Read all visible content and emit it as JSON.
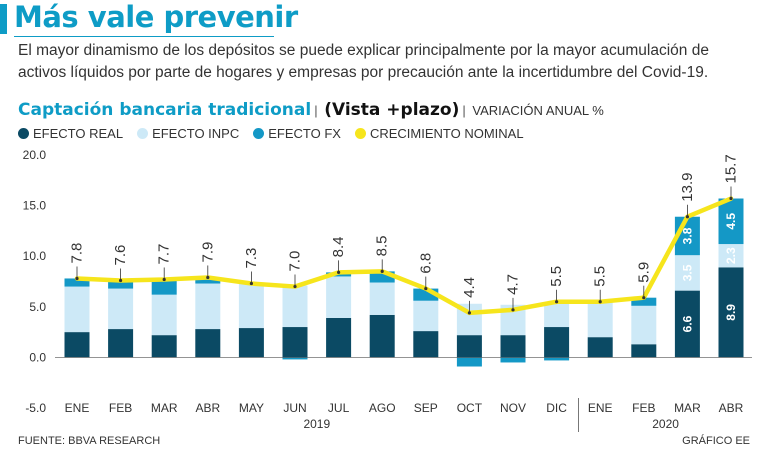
{
  "header": {
    "title": "Más vale prevenir",
    "subtitle": "El mayor dinamismo de los depósitos se puede explicar principalmente por la mayor acumulación de activos líquidos por parte de hogares y empresas por precaución ante la incertidumbre del Covid-19."
  },
  "chart_head": {
    "title": "Captación bancaria tradicional",
    "subtitle": "(Vista +plazo)",
    "unit": "VARIACIÓN ANUAL %"
  },
  "legend": [
    {
      "label": "EFECTO REAL",
      "color": "#0b4a64"
    },
    {
      "label": "EFECTO INPC",
      "color": "#cde9f7"
    },
    {
      "label": "EFECTO FX",
      "color": "#1498c6"
    },
    {
      "label": "CRECIMIENTO NOMINAL",
      "color": "#f6e51c"
    }
  ],
  "chart_data": {
    "type": "bar",
    "stacked": true,
    "categories": [
      "ENE",
      "FEB",
      "MAR",
      "ABR",
      "MAY",
      "JUN",
      "JUL",
      "AGO",
      "SEP",
      "OCT",
      "NOV",
      "DIC",
      "ENE",
      "FEB",
      "MAR",
      "ABR"
    ],
    "years": [
      {
        "label": "2019",
        "from": 0,
        "to": 11
      },
      {
        "label": "2020",
        "from": 12,
        "to": 15
      }
    ],
    "series": [
      {
        "name": "EFECTO REAL",
        "color": "#0b4a64",
        "values": [
          2.5,
          2.8,
          2.2,
          2.8,
          2.9,
          3.0,
          3.9,
          4.2,
          2.6,
          2.2,
          2.2,
          3.0,
          2.0,
          1.3,
          6.6,
          8.9
        ]
      },
      {
        "name": "EFECTO INPC",
        "color": "#cde9f7",
        "values": [
          4.5,
          4.0,
          4.0,
          4.5,
          4.4,
          4.1,
          4.1,
          3.2,
          3.0,
          3.1,
          3.0,
          2.3,
          3.5,
          3.8,
          3.5,
          2.3
        ]
      },
      {
        "name": "EFECTO FX",
        "color": "#1498c6",
        "values": [
          0.8,
          0.8,
          1.5,
          0.6,
          0.0,
          -0.2,
          0.4,
          1.1,
          1.2,
          -0.9,
          -0.5,
          -0.3,
          0.1,
          0.8,
          3.8,
          4.5
        ]
      },
      {
        "name": "CRECIMIENTO NOMINAL",
        "color": "#f6e51c",
        "type": "line",
        "values": [
          7.8,
          7.6,
          7.7,
          7.9,
          7.3,
          7.0,
          8.4,
          8.5,
          6.8,
          4.4,
          4.7,
          5.5,
          5.5,
          5.9,
          13.9,
          15.7
        ]
      }
    ],
    "bar_labels": [
      {
        "index": 14,
        "series": "EFECTO REAL",
        "text": "6.6"
      },
      {
        "index": 14,
        "series": "EFECTO INPC",
        "text": "3.5"
      },
      {
        "index": 14,
        "series": "EFECTO FX",
        "text": "3.8"
      },
      {
        "index": 15,
        "series": "EFECTO REAL",
        "text": "8.9"
      },
      {
        "index": 15,
        "series": "EFECTO INPC",
        "text": "2.3"
      },
      {
        "index": 15,
        "series": "EFECTO FX",
        "text": "4.5"
      }
    ],
    "y_ticks": [
      "20.0",
      "15.0",
      "10.0",
      "5.0",
      "0.0",
      "-5.0"
    ],
    "ylim": [
      -5,
      20
    ],
    "xlabel": "",
    "ylabel": ""
  },
  "footer": {
    "source": "FUENTE: BBVA RESEARCH",
    "credit": "GRÁFICO EE"
  }
}
